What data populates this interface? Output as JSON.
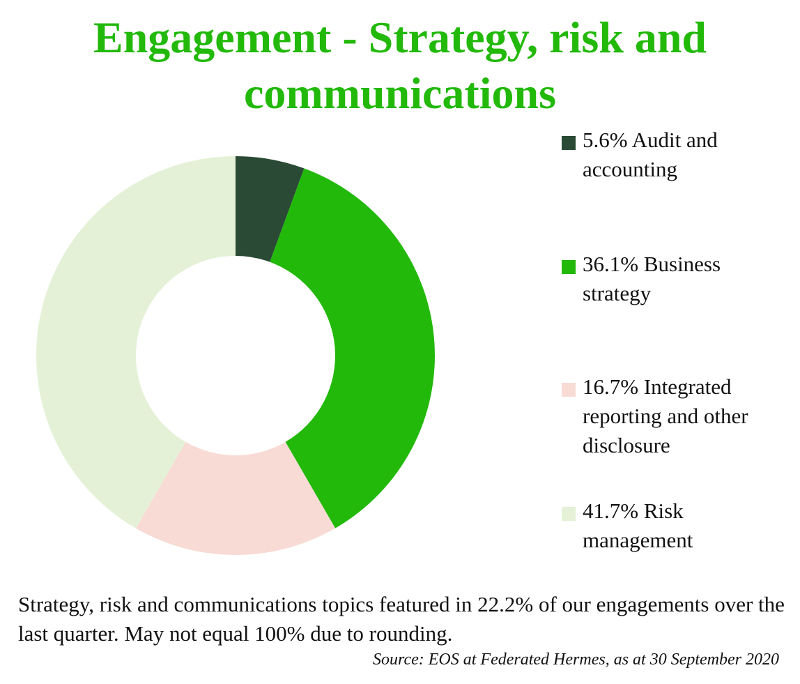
{
  "chart_data": {
    "type": "pie",
    "title": "Engagement - Strategy, risk and communications",
    "slices": [
      {
        "label": "5.6% Audit and accounting",
        "value": 5.6,
        "color": "#2a4a35"
      },
      {
        "label": "36.1% Business strategy",
        "value": 36.1,
        "color": "#22b90a"
      },
      {
        "label": "16.7% Integrated reporting and other disclosure",
        "value": 16.7,
        "color": "#f8dbd5"
      },
      {
        "label": "41.7% Risk management",
        "value": 41.7,
        "color": "#e5f1d7"
      }
    ],
    "legend_position": "right"
  },
  "footnote": "Strategy, risk and communications topics featured in 22.2% of our engagements over the last quarter. May not equal 100% due to rounding.",
  "source": "Source: EOS at Federated Hermes, as at 30 September 2020"
}
